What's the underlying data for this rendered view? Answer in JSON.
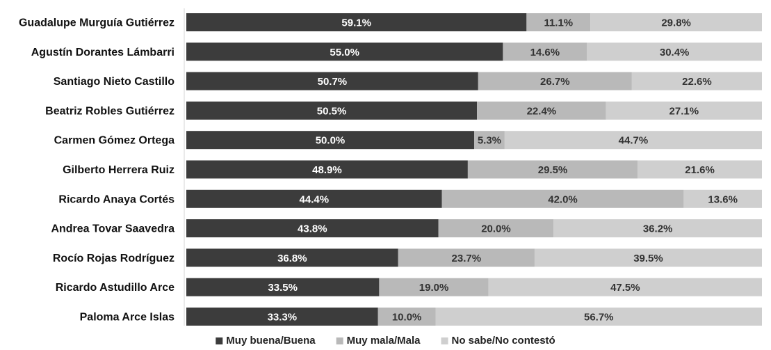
{
  "chart_data": {
    "type": "bar",
    "orientation": "horizontal",
    "stacked": true,
    "categories": [
      "Guadalupe Murguía Gutiérrez",
      "Agustín Dorantes Lámbarri",
      "Santiago Nieto Castillo",
      "Beatriz Robles Gutiérrez",
      "Carmen Gómez Ortega",
      "Gilberto Herrera Ruiz",
      "Ricardo Anaya Cortés",
      "Andrea Tovar Saavedra",
      "Rocío Rojas Rodríguez",
      "Ricardo Astudillo Arce",
      "Paloma Arce Islas"
    ],
    "series": [
      {
        "name": "Muy buena/Buena",
        "color": "#3c3c3c",
        "label_color": "#ffffff",
        "values": [
          59.1,
          55.0,
          50.7,
          50.5,
          50.0,
          48.9,
          44.4,
          43.8,
          36.8,
          33.5,
          33.3
        ],
        "labels": [
          "59.1%",
          "55.0%",
          "50.7%",
          "50.5%",
          "50.0%",
          "48.9%",
          "44.4%",
          "43.8%",
          "36.8%",
          "33.5%",
          "33.3%"
        ]
      },
      {
        "name": "Muy mala/Mala",
        "color": "#b9b9b9",
        "label_color": "#333333",
        "values": [
          11.1,
          14.6,
          26.7,
          22.4,
          5.3,
          29.5,
          42.0,
          20.0,
          23.7,
          19.0,
          10.0
        ],
        "labels": [
          "11.1%",
          "14.6%",
          "26.7%",
          "22.4%",
          "5.3%",
          "29.5%",
          "42.0%",
          "20.0%",
          "23.7%",
          "19.0%",
          "10.0%"
        ]
      },
      {
        "name": "No sabe/No contestó",
        "color": "#cfcfcf",
        "label_color": "#333333",
        "values": [
          29.8,
          30.4,
          22.6,
          27.1,
          44.7,
          21.6,
          13.6,
          36.2,
          39.5,
          47.5,
          56.7
        ],
        "labels": [
          "29.8%",
          "30.4%",
          "22.6%",
          "27.1%",
          "44.7%",
          "21.6%",
          "13.6%",
          "36.2%",
          "39.5%",
          "47.5%",
          "56.7%"
        ]
      }
    ],
    "xlim": [
      0,
      100
    ],
    "grid": false,
    "legend": "bottom-center"
  }
}
